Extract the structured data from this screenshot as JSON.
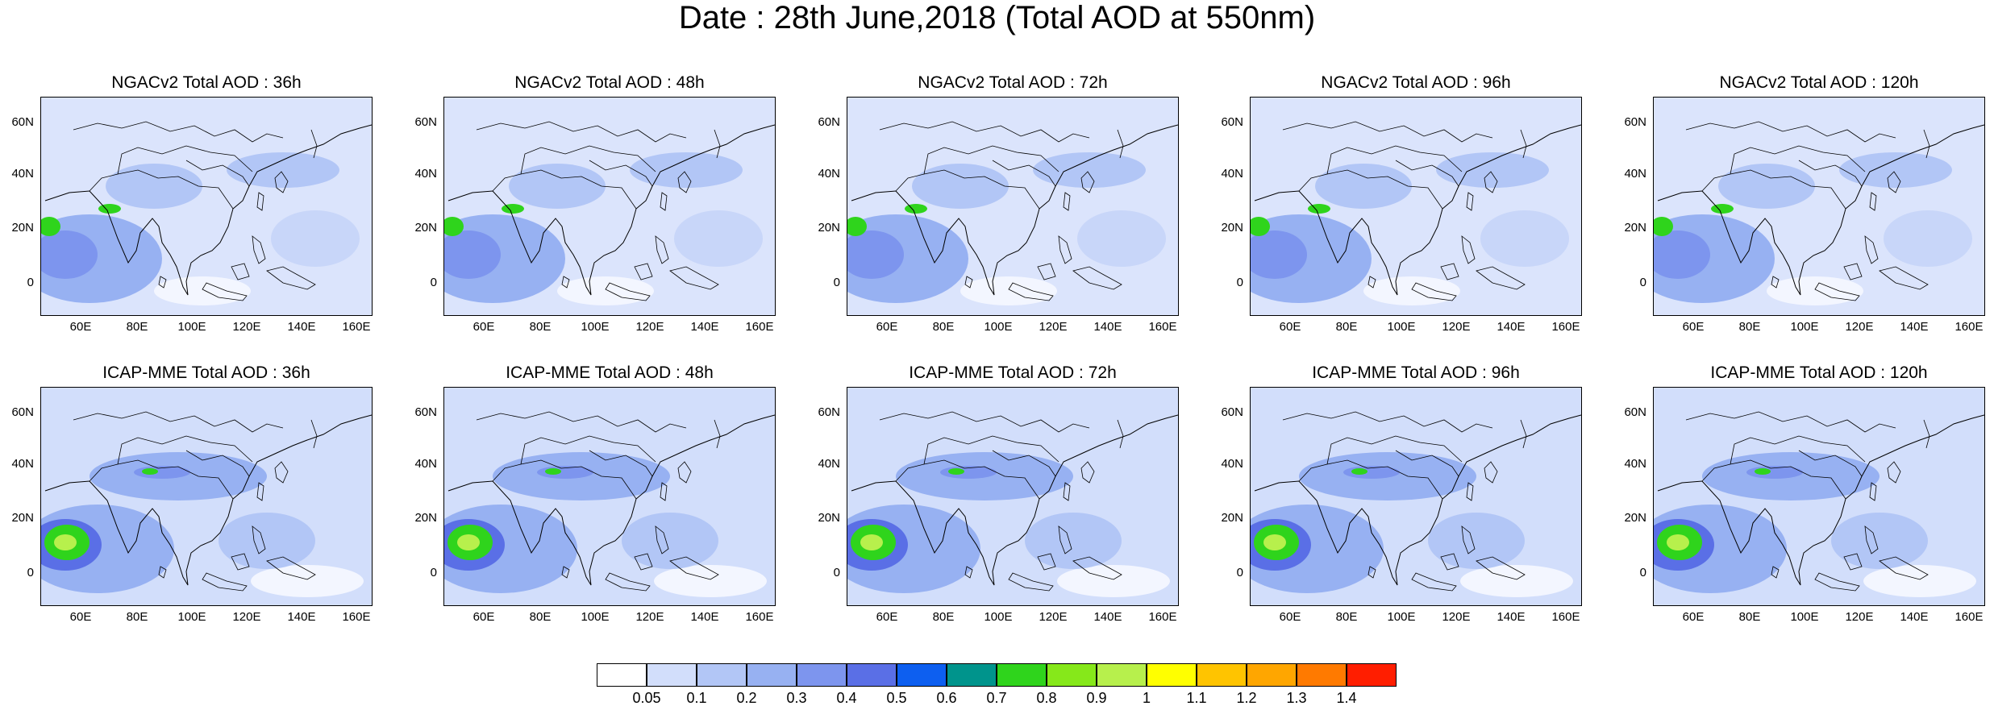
{
  "title": "Date : 28th June,2018 (Total AOD at 550nm)",
  "lat_ticks": [
    "60N",
    "40N",
    "20N",
    "0"
  ],
  "lon_ticks": [
    "60E",
    "80E",
    "100E",
    "120E",
    "140E",
    "160E"
  ],
  "panels": [
    {
      "title": "NGACv2 Total AOD : 36h",
      "model": "NGACv2",
      "lead": "36h"
    },
    {
      "title": "NGACv2 Total AOD : 48h",
      "model": "NGACv2",
      "lead": "48h"
    },
    {
      "title": "NGACv2 Total AOD : 72h",
      "model": "NGACv2",
      "lead": "72h"
    },
    {
      "title": "NGACv2 Total AOD : 96h",
      "model": "NGACv2",
      "lead": "96h"
    },
    {
      "title": "NGACv2 Total AOD : 120h",
      "model": "NGACv2",
      "lead": "120h"
    },
    {
      "title": "ICAP-MME Total AOD : 36h",
      "model": "ICAP-MME",
      "lead": "36h"
    },
    {
      "title": "ICAP-MME Total AOD : 48h",
      "model": "ICAP-MME",
      "lead": "48h"
    },
    {
      "title": "ICAP-MME Total AOD : 72h",
      "model": "ICAP-MME",
      "lead": "72h"
    },
    {
      "title": "ICAP-MME Total AOD : 96h",
      "model": "ICAP-MME",
      "lead": "96h"
    },
    {
      "title": "ICAP-MME Total AOD : 120h",
      "model": "ICAP-MME",
      "lead": "120h"
    }
  ],
  "colorbar": {
    "labels": [
      "0.05",
      "0.1",
      "0.2",
      "0.3",
      "0.4",
      "0.5",
      "0.6",
      "0.7",
      "0.8",
      "0.9",
      "1",
      "1.1",
      "1.2",
      "1.3",
      "1.4"
    ],
    "colors": [
      "#ffffff",
      "#d2defb",
      "#b2c6f6",
      "#97b1f2",
      "#7d95ee",
      "#5a6fe6",
      "#0d5ff0",
      "#00948c",
      "#2fd41c",
      "#86e81a",
      "#b7f04c",
      "#ffff00",
      "#ffc400",
      "#ffa600",
      "#ff7a00",
      "#ff1e00"
    ]
  }
}
